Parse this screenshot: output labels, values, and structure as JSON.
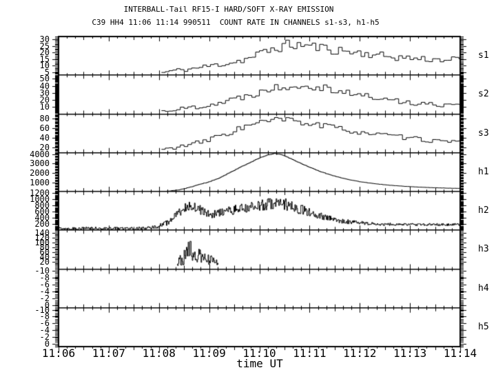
{
  "title": "INTERBALL-Tail RF15-I HARD/SOFT X-RAY EMISSION",
  "subtitle": "C39 HH4 11:06 11:14 990511  COUNT RATE IN CHANNELS s1-s3, h1-h5",
  "xlabel": "time UT",
  "colors": {
    "foreground": "#000000",
    "background": "#ffffff"
  },
  "chart_data": {
    "type": "line",
    "subtype": "stacked-step-histogram-panels",
    "x_tick_labels": [
      "11:06",
      "11:07",
      "11:08",
      "11:09",
      "11:10",
      "11:11",
      "11:12",
      "11:13",
      "11:14"
    ],
    "x_range_minutes": [
      0,
      8
    ],
    "x_minor_tick_seconds": 10,
    "grid": false,
    "panels": [
      {
        "id": "s1",
        "label": "s1",
        "ymin": 0,
        "ymax": 32,
        "minor_ticks": 32,
        "yticks": [
          [
            "30",
            0.07
          ],
          [
            "25",
            0.24
          ],
          [
            "20",
            0.41
          ],
          [
            "15",
            0.58
          ],
          [
            "10",
            0.75
          ],
          [
            "5",
            0.92
          ]
        ],
        "trace": {
          "style": "step",
          "bin_seconds": 4.5,
          "seed": 11,
          "clamp": [
            0.3,
            31.5
          ],
          "keypoints": [
            [
              2.05,
              2,
              1
            ],
            [
              2.3,
              4,
              1.5
            ],
            [
              2.6,
              5,
              2
            ],
            [
              2.9,
              7,
              2
            ],
            [
              3.2,
              9,
              2.5
            ],
            [
              3.5,
              11,
              3
            ],
            [
              3.8,
              14,
              3
            ],
            [
              4.1,
              19,
              4
            ],
            [
              4.35,
              23,
              4.5
            ],
            [
              4.6,
              25,
              4.5
            ],
            [
              4.9,
              25,
              4
            ],
            [
              5.2,
              23,
              4
            ],
            [
              5.5,
              21,
              4
            ],
            [
              5.9,
              19,
              3.5
            ],
            [
              6.3,
              17,
              3
            ],
            [
              6.7,
              15,
              3
            ],
            [
              7.1,
              14,
              3
            ],
            [
              7.5,
              13,
              2.5
            ],
            [
              8,
              13,
              2.5
            ]
          ]
        }
      },
      {
        "id": "s2",
        "label": "s2",
        "ymin": 0,
        "ymax": 55,
        "minor_ticks": 55,
        "yticks": [
          [
            "50",
            0.091
          ],
          [
            "40",
            0.273
          ],
          [
            "30",
            0.455
          ],
          [
            "20",
            0.636
          ],
          [
            "10",
            0.818
          ]
        ],
        "trace": {
          "style": "step",
          "bin_seconds": 4.5,
          "seed": 22,
          "clamp": [
            0.5,
            54
          ],
          "keypoints": [
            [
              2.05,
              4,
              2
            ],
            [
              2.3,
              6,
              2.5
            ],
            [
              2.6,
              9,
              3
            ],
            [
              2.9,
              12,
              3.5
            ],
            [
              3.2,
              16,
              4
            ],
            [
              3.5,
              21,
              5
            ],
            [
              3.8,
              27,
              5
            ],
            [
              4.1,
              34,
              6
            ],
            [
              4.4,
              39,
              6
            ],
            [
              4.7,
              41,
              6
            ],
            [
              5.0,
              41,
              6
            ],
            [
              5.3,
              38,
              6
            ],
            [
              5.6,
              33,
              5
            ],
            [
              6.0,
              27,
              5
            ],
            [
              6.4,
              22,
              4
            ],
            [
              6.8,
              18,
              4
            ],
            [
              7.2,
              15,
              3.5
            ],
            [
              7.6,
              13,
              3
            ],
            [
              8,
              15,
              3
            ]
          ]
        }
      },
      {
        "id": "s3",
        "label": "s3",
        "ymin": 0,
        "ymax": 90,
        "minor_ticks": 45,
        "yticks": [
          [
            "80",
            0.115
          ],
          [
            "60",
            0.364
          ],
          [
            "40",
            0.613
          ],
          [
            "20",
            0.862
          ]
        ],
        "trace": {
          "style": "step",
          "bin_seconds": 4.5,
          "seed": 33,
          "clamp": [
            0.5,
            89
          ],
          "keypoints": [
            [
              2.05,
              7,
              3
            ],
            [
              2.3,
              12,
              4
            ],
            [
              2.6,
              18,
              5
            ],
            [
              2.9,
              26,
              6
            ],
            [
              3.2,
              38,
              7
            ],
            [
              3.5,
              52,
              8
            ],
            [
              3.8,
              63,
              8
            ],
            [
              4.1,
              72,
              8
            ],
            [
              4.4,
              77,
              8
            ],
            [
              4.7,
              74,
              8
            ],
            [
              5.0,
              68,
              8
            ],
            [
              5.4,
              60,
              7
            ],
            [
              5.8,
              52,
              7
            ],
            [
              6.2,
              45,
              6
            ],
            [
              6.6,
              39,
              6
            ],
            [
              7.0,
              34,
              5
            ],
            [
              7.4,
              29,
              5
            ],
            [
              7.7,
              26,
              4
            ],
            [
              8,
              24,
              4
            ]
          ]
        }
      },
      {
        "id": "h1",
        "label": "h1",
        "ymin": 0,
        "ymax": 4160,
        "minor_ticks": 42,
        "yticks": [
          [
            "4000",
            0.038
          ],
          [
            "3000",
            0.279
          ],
          [
            "2000",
            0.519
          ],
          [
            "1000",
            0.76
          ]
        ],
        "trace": {
          "style": "step",
          "bin_seconds": 2,
          "seed": 44,
          "clamp": [
            10,
            4150
          ],
          "keypoints": [
            [
              2.15,
              30,
              10
            ],
            [
              2.4,
              180,
              15
            ],
            [
              2.6,
              430,
              20
            ],
            [
              2.8,
              760,
              20
            ],
            [
              3.0,
              1030,
              20
            ],
            [
              3.2,
              1450,
              25
            ],
            [
              3.4,
              2000,
              25
            ],
            [
              3.6,
              2550,
              25
            ],
            [
              3.8,
              3060,
              25
            ],
            [
              4.0,
              3600,
              25
            ],
            [
              4.15,
              3900,
              20
            ],
            [
              4.3,
              4080,
              15
            ],
            [
              4.45,
              3960,
              15
            ],
            [
              4.6,
              3600,
              20
            ],
            [
              4.8,
              3100,
              20
            ],
            [
              5.0,
              2620,
              20
            ],
            [
              5.2,
              2180,
              20
            ],
            [
              5.4,
              1820,
              15
            ],
            [
              5.6,
              1520,
              15
            ],
            [
              5.8,
              1270,
              12
            ],
            [
              6.0,
              1060,
              12
            ],
            [
              6.3,
              840,
              10
            ],
            [
              6.6,
              680,
              10
            ],
            [
              6.9,
              560,
              8
            ],
            [
              7.2,
              470,
              8
            ],
            [
              7.5,
              410,
              8
            ],
            [
              7.8,
              360,
              8
            ],
            [
              8,
              340,
              8
            ]
          ]
        }
      },
      {
        "id": "h2",
        "label": "h2",
        "ymin": 0,
        "ymax": 1250,
        "minor_ticks": 50,
        "yticks": [
          [
            "1200",
            0.04
          ],
          [
            "1000",
            0.2
          ],
          [
            "800",
            0.36
          ],
          [
            "600",
            0.52
          ],
          [
            "400",
            0.68
          ],
          [
            "200",
            0.84
          ]
        ],
        "trace": {
          "style": "step",
          "bin_seconds": 0.8,
          "seed": 55,
          "clamp": [
            5,
            1245
          ],
          "keypoints": [
            [
              0,
              60,
              45
            ],
            [
              1.75,
              65,
              45
            ],
            [
              1.95,
              110,
              60
            ],
            [
              2.15,
              230,
              90
            ],
            [
              2.35,
              480,
              130
            ],
            [
              2.55,
              790,
              170
            ],
            [
              2.7,
              800,
              170
            ],
            [
              2.85,
              620,
              150
            ],
            [
              3.0,
              510,
              130
            ],
            [
              3.2,
              560,
              140
            ],
            [
              3.45,
              640,
              150
            ],
            [
              3.7,
              710,
              160
            ],
            [
              3.95,
              780,
              170
            ],
            [
              4.2,
              860,
              190
            ],
            [
              4.45,
              880,
              200
            ],
            [
              4.65,
              780,
              180
            ],
            [
              4.85,
              660,
              160
            ],
            [
              5.05,
              540,
              130
            ],
            [
              5.25,
              440,
              110
            ],
            [
              5.45,
              360,
              90
            ],
            [
              5.65,
              300,
              75
            ],
            [
              5.9,
              255,
              60
            ],
            [
              6.2,
              215,
              50
            ],
            [
              6.5,
              195,
              45
            ],
            [
              7.0,
              185,
              40
            ],
            [
              7.5,
              185,
              40
            ],
            [
              8,
              190,
              40
            ]
          ]
        }
      },
      {
        "id": "h3",
        "label": "h3",
        "ymin": -10,
        "ymax": 150,
        "minor_ticks": 32,
        "yticks": [
          [
            "140",
            0.063
          ],
          [
            "120",
            0.188
          ],
          [
            "100",
            0.313
          ],
          [
            "80",
            0.438
          ],
          [
            "60",
            0.563
          ],
          [
            "40",
            0.688
          ],
          [
            "20",
            0.813
          ]
        ],
        "trace": {
          "style": "step",
          "bin_seconds": 0.7,
          "seed": 66,
          "clamp": [
            -6,
            142
          ],
          "keypoints": [
            [
              2.36,
              22,
              18
            ],
            [
              2.45,
              32,
              26
            ],
            [
              2.55,
              45,
              35
            ],
            [
              2.62,
              85,
              48
            ],
            [
              2.68,
              60,
              42
            ],
            [
              2.78,
              42,
              32
            ],
            [
              2.9,
              36,
              28
            ],
            [
              3.0,
              30,
              24
            ],
            [
              3.1,
              22,
              18
            ],
            [
              3.18,
              14,
              10
            ]
          ]
        }
      },
      {
        "id": "h4",
        "label": "h4",
        "ymin": 0,
        "ymax": 10,
        "minor_ticks": 25,
        "yticks": [
          [
            "-10",
            0.05
          ],
          [
            "-8",
            0.225
          ],
          [
            "-6",
            0.4
          ],
          [
            "-4",
            0.575
          ],
          [
            "-2",
            0.75
          ],
          [
            "0",
            0.925
          ]
        ],
        "trace": null
      },
      {
        "id": "h5",
        "label": "h5",
        "ymin": 0,
        "ymax": 10,
        "minor_ticks": 25,
        "yticks": [
          [
            "-10",
            0.05
          ],
          [
            "-8",
            0.225
          ],
          [
            "-6",
            0.4
          ],
          [
            "-4",
            0.575
          ],
          [
            "-2",
            0.75
          ],
          [
            "0",
            0.925
          ]
        ],
        "trace": null
      }
    ]
  }
}
